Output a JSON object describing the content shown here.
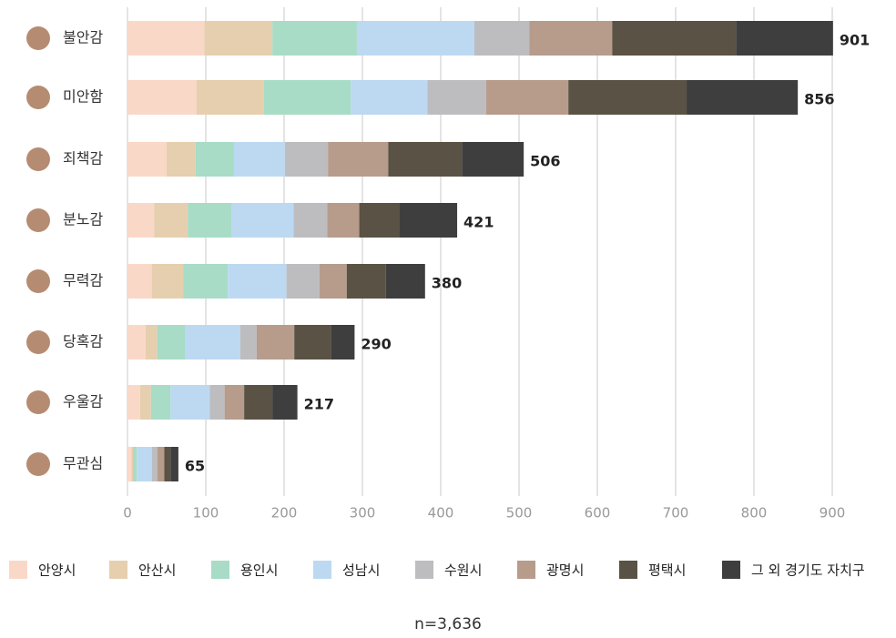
{
  "chart_data": {
    "type": "stacked-barh",
    "categories": [
      "불안감",
      "미안함",
      "죄책감",
      "분노감",
      "무력감",
      "당혹감",
      "우울감",
      "무관심"
    ],
    "series": [
      {
        "name": "안양시",
        "color": "#fad8c8",
        "values": [
          98,
          88,
          50,
          34,
          31,
          23,
          16,
          5
        ]
      },
      {
        "name": "안산시",
        "color": "#e6cfae",
        "values": [
          87,
          86,
          37,
          43,
          40,
          15,
          14,
          2
        ]
      },
      {
        "name": "용인시",
        "color": "#a8dcc6",
        "values": [
          108,
          111,
          49,
          56,
          57,
          36,
          25,
          5
        ]
      },
      {
        "name": "성남시",
        "color": "#bcd9f1",
        "values": [
          150,
          98,
          65,
          79,
          75,
          70,
          50,
          19
        ]
      },
      {
        "name": "수원시",
        "color": "#bdbdc0",
        "values": [
          70,
          75,
          55,
          43,
          42,
          21,
          19,
          7
        ]
      },
      {
        "name": "광명시",
        "color": "#b79b8b",
        "values": [
          106,
          105,
          77,
          41,
          35,
          48,
          25,
          9
        ]
      },
      {
        "name": "평택시",
        "color": "#5a5244",
        "values": [
          158,
          151,
          94,
          51,
          50,
          47,
          36,
          8
        ]
      },
      {
        "name": "그 외 경기도 자치구",
        "color": "#3e3e3e",
        "values": [
          124,
          142,
          79,
          74,
          50,
          30,
          32,
          10
        ]
      }
    ],
    "totals": [
      901,
      856,
      506,
      421,
      380,
      290,
      217,
      65
    ],
    "xlim": [
      0,
      900
    ],
    "xticks": [
      0,
      100,
      200,
      300,
      400,
      500,
      600,
      700,
      800,
      900
    ],
    "grid": true,
    "note": "n=3,636"
  }
}
